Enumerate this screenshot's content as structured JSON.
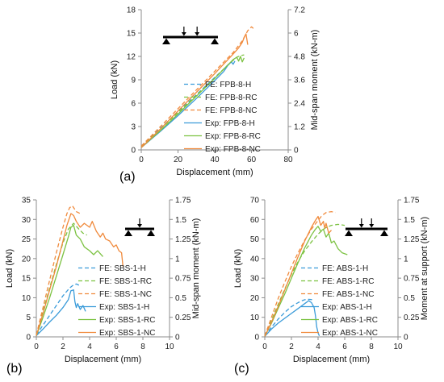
{
  "colors": {
    "hybrid": "#3a9bd9",
    "recycled": "#7cc242",
    "natural": "#f08a3c",
    "axis": "#8c8c8c",
    "text": "#222222"
  },
  "chart_data": [
    {
      "id": "a",
      "type": "line",
      "panel_label": "(a)",
      "xlabel": "Displacement (mm)",
      "ylabel": "Load (kN)",
      "y2label": "Mid-span moment (kN-m)",
      "xlim": [
        0,
        80
      ],
      "ylim": [
        0,
        18
      ],
      "y2lim": [
        0,
        7.2
      ],
      "xticks": [
        "0",
        "20",
        "40",
        "60",
        "80"
      ],
      "yticks": [
        "0",
        "3",
        "6",
        "9",
        "12",
        "15",
        "18"
      ],
      "y2ticks": [
        "0",
        "1.2",
        "2.4",
        "3.6",
        "4.8",
        "6",
        "7.2"
      ],
      "legend_position": "bottom-right",
      "icon": "four-point",
      "series": [
        {
          "name": "FE: FPB-8-H",
          "style": "dashed",
          "color_key": "hybrid",
          "x": [
            0,
            10,
            20,
            30,
            40,
            45,
            48,
            50,
            51
          ],
          "y": [
            0.5,
            2.7,
            4.9,
            7.1,
            9.3,
            10.4,
            11.1,
            11.5,
            11.7
          ]
        },
        {
          "name": "FE: FPB-8-RC",
          "style": "dashed",
          "color_key": "recycled",
          "x": [
            0,
            10,
            20,
            30,
            40,
            45,
            50,
            52,
            54,
            56
          ],
          "y": [
            0.5,
            2.6,
            4.8,
            7.0,
            9.2,
            10.4,
            11.5,
            11.9,
            12.1,
            12.2
          ]
        },
        {
          "name": "FE: FPB-8-NC",
          "style": "dashed",
          "color_key": "natural",
          "x": [
            0,
            10,
            20,
            30,
            40,
            50,
            55,
            58,
            60,
            61
          ],
          "y": [
            0.5,
            2.9,
            5.3,
            7.7,
            10.1,
            12.5,
            14.0,
            15.3,
            15.8,
            15.6
          ]
        },
        {
          "name": "Exp: FPB-8-H",
          "style": "solid",
          "color_key": "hybrid",
          "x": [
            0,
            10,
            20,
            30,
            40,
            45,
            47,
            49,
            50,
            51
          ],
          "y": [
            0.3,
            2.3,
            4.4,
            6.6,
            8.9,
            10.1,
            10.8,
            11.3,
            11.0,
            11.4
          ]
        },
        {
          "name": "Exp: FPB-8-RC",
          "style": "solid",
          "color_key": "recycled",
          "x": [
            0,
            10,
            20,
            30,
            40,
            45,
            48,
            50,
            52,
            53,
            54,
            55,
            56
          ],
          "y": [
            0.3,
            2.4,
            4.6,
            6.9,
            9.2,
            10.4,
            11.1,
            11.6,
            11.9,
            11.4,
            12.0,
            11.3,
            11.8
          ]
        },
        {
          "name": "Exp: FPB-8-NC",
          "style": "solid",
          "color_key": "natural",
          "x": [
            0,
            10,
            20,
            30,
            40,
            50,
            53,
            55,
            56,
            57,
            57.5,
            58
          ],
          "y": [
            0.3,
            2.6,
            5.0,
            7.4,
            9.8,
            12.3,
            13.1,
            13.8,
            14.4,
            14.9,
            14.2,
            13.5
          ]
        }
      ]
    },
    {
      "id": "b",
      "type": "line",
      "panel_label": "(b)",
      "xlabel": "Displacement (mm)",
      "ylabel": "Load (kN)",
      "y2label": "Mid-span moment (kN-m)",
      "xlim": [
        0,
        10
      ],
      "ylim": [
        0,
        35
      ],
      "y2lim": [
        0,
        1.75
      ],
      "xticks": [
        "0",
        "2",
        "4",
        "6",
        "8",
        "10"
      ],
      "yticks": [
        "0",
        "5",
        "10",
        "15",
        "20",
        "25",
        "30",
        "35"
      ],
      "y2ticks": [
        "0",
        "0.25",
        "0.5",
        "0.75",
        "1",
        "1.25",
        "1.5",
        "1.75"
      ],
      "legend_position": "bottom-right",
      "icon": "three-point",
      "series": [
        {
          "name": "FE: SBS-1-H",
          "style": "dashed",
          "color_key": "hybrid",
          "x": [
            0,
            0.5,
            1,
            1.5,
            2,
            2.5,
            2.8,
            3.0,
            3.2
          ],
          "y": [
            0.5,
            3.0,
            5.5,
            8.0,
            10.5,
            12.5,
            13.3,
            13.5,
            13.2
          ]
        },
        {
          "name": "FE: SBS-1-RC",
          "style": "dashed",
          "color_key": "recycled",
          "x": [
            0,
            0.5,
            1,
            1.5,
            2,
            2.4,
            2.8,
            3.2,
            3.5,
            3.8
          ],
          "y": [
            0.5,
            6.5,
            12.5,
            18.5,
            24.0,
            27.5,
            29.0,
            27.5,
            26.5,
            26.0
          ]
        },
        {
          "name": "FE: SBS-1-NC",
          "style": "dashed",
          "color_key": "natural",
          "x": [
            0,
            0.5,
            1,
            1.5,
            2,
            2.3,
            2.5,
            2.7,
            3.0,
            3.3
          ],
          "y": [
            0.5,
            7.5,
            14.5,
            21.5,
            28.0,
            31.5,
            33.0,
            33.5,
            32.0,
            31.5
          ]
        },
        {
          "name": "Exp: SBS-1-H",
          "style": "solid",
          "color_key": "hybrid",
          "x": [
            0,
            0.5,
            1,
            1.5,
            2,
            2.4,
            2.6,
            2.8,
            2.9,
            3.0,
            3.1,
            3.3,
            3.5,
            3.7
          ],
          "y": [
            0.3,
            2.0,
            3.8,
            5.5,
            7.5,
            9.5,
            11.8,
            12.0,
            9.0,
            7.5,
            8.5,
            7.0,
            8.0,
            6.5
          ]
        },
        {
          "name": "Exp: SBS-1-RC",
          "style": "solid",
          "color_key": "recycled",
          "x": [
            0,
            0.5,
            1,
            1.5,
            2,
            2.4,
            2.6,
            2.8,
            3.0,
            3.3,
            3.6,
            4.0,
            4.3,
            4.6,
            5.0
          ],
          "y": [
            0.3,
            5.0,
            10.0,
            15.5,
            21.0,
            25.5,
            28.0,
            28.5,
            26.0,
            25.0,
            23.0,
            22.0,
            21.0,
            22.0,
            20.5
          ]
        },
        {
          "name": "Exp: SBS-1-NC",
          "style": "solid",
          "color_key": "natural",
          "x": [
            0,
            0.5,
            1,
            1.5,
            2,
            2.3,
            2.6,
            2.8,
            3.0,
            3.3,
            3.6,
            4.0,
            4.2,
            4.5,
            4.8,
            5.0,
            5.2,
            5.5,
            5.8,
            6.0,
            6.2,
            6.4,
            6.5
          ],
          "y": [
            0.3,
            6.0,
            12.0,
            18.0,
            24.5,
            28.5,
            31.5,
            31.0,
            29.5,
            28.0,
            29.0,
            28.0,
            29.5,
            27.0,
            25.5,
            26.5,
            25.0,
            24.5,
            23.0,
            23.5,
            22.0,
            21.5,
            18.0
          ]
        }
      ]
    },
    {
      "id": "c",
      "type": "line",
      "panel_label": "(c)",
      "xlabel": "Displacement (mm)",
      "ylabel": "Load (kN)",
      "y2label": "Moment at support (kN-m)",
      "xlim": [
        0,
        10
      ],
      "ylim": [
        0,
        70
      ],
      "y2lim": [
        0,
        1.75
      ],
      "xticks": [
        "0",
        "2",
        "4",
        "6",
        "8",
        "10"
      ],
      "yticks": [
        "0",
        "10",
        "20",
        "30",
        "40",
        "50",
        "60",
        "70"
      ],
      "y2ticks": [
        "0",
        "0.25",
        "0.5",
        "0.75",
        "1",
        "1.25",
        "1.5",
        "1.75"
      ],
      "legend_position": "bottom-right",
      "icon": "four-point",
      "series": [
        {
          "name": "FE: ABS-1-H",
          "style": "dashed",
          "color_key": "hybrid",
          "x": [
            0,
            0.5,
            1,
            1.5,
            2,
            2.5,
            2.8,
            3.0,
            3.3,
            3.6
          ],
          "y": [
            0.5,
            5.0,
            9.0,
            12.5,
            15.5,
            17.5,
            18.5,
            19.0,
            19.2,
            19.0
          ]
        },
        {
          "name": "FE: ABS-1-RC",
          "style": "dashed",
          "color_key": "recycled",
          "x": [
            0,
            0.5,
            1,
            1.5,
            2,
            2.5,
            3.0,
            3.5,
            4.0,
            4.5,
            5.0,
            5.5,
            6.0
          ],
          "y": [
            0.5,
            8.5,
            16.5,
            24.5,
            32.0,
            38.5,
            44.0,
            48.5,
            52.5,
            55.5,
            57.0,
            57.5,
            57.0
          ]
        },
        {
          "name": "FE: ABS-1-NC",
          "style": "dashed",
          "color_key": "natural",
          "x": [
            0,
            0.5,
            1,
            1.5,
            2,
            2.5,
            3.0,
            3.5,
            4.0,
            4.3,
            4.6,
            5.0,
            5.3
          ],
          "y": [
            0.5,
            10.0,
            19.5,
            28.0,
            36.0,
            43.0,
            49.5,
            55.0,
            59.5,
            62.0,
            63.5,
            64.0,
            63.5
          ]
        },
        {
          "name": "Exp: ABS-1-H",
          "style": "solid",
          "color_key": "hybrid",
          "x": [
            0,
            0.5,
            1,
            1.5,
            2,
            2.5,
            3.0,
            3.3,
            3.5,
            3.7,
            3.8,
            3.9,
            4.0,
            4.1
          ],
          "y": [
            0.3,
            4.0,
            7.0,
            9.5,
            12.0,
            14.5,
            17.0,
            18.5,
            17.5,
            15.0,
            11.0,
            5.0,
            2.0,
            0.5
          ]
        },
        {
          "name": "Exp: ABS-1-RC",
          "style": "solid",
          "color_key": "recycled",
          "x": [
            0,
            0.5,
            1,
            1.5,
            2,
            2.5,
            3.0,
            3.5,
            3.8,
            4.0,
            4.2,
            4.4,
            4.6,
            4.8,
            5.0,
            5.2,
            5.5,
            5.8,
            6.2
          ],
          "y": [
            0.3,
            7.0,
            14.5,
            22.0,
            30.0,
            38.0,
            45.5,
            52.0,
            55.0,
            56.5,
            54.0,
            55.0,
            51.0,
            53.0,
            48.0,
            49.0,
            45.0,
            43.0,
            42.0
          ]
        },
        {
          "name": "Exp: ABS-1-NC",
          "style": "solid",
          "color_key": "natural",
          "x": [
            0,
            0.5,
            1,
            1.5,
            2,
            2.5,
            3.0,
            3.5,
            3.8,
            4.0,
            4.2,
            4.4,
            4.5,
            4.6,
            4.8,
            5.0
          ],
          "y": [
            0.3,
            7.5,
            15.5,
            24.0,
            32.5,
            41.0,
            49.0,
            56.0,
            59.5,
            61.5,
            57.0,
            59.0,
            55.5,
            58.0,
            53.0,
            54.5
          ]
        }
      ]
    }
  ]
}
